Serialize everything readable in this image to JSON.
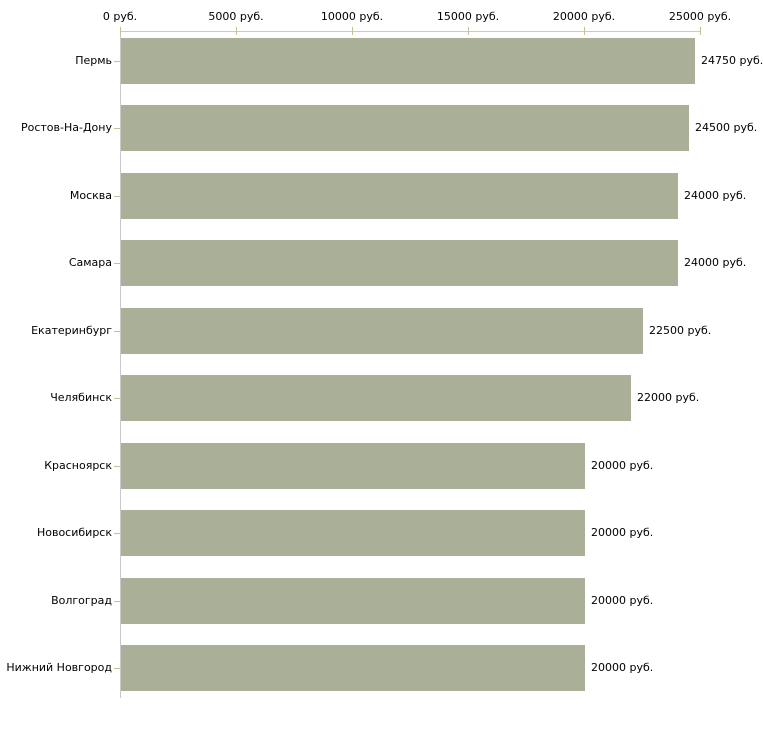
{
  "chart_data": {
    "type": "bar",
    "orientation": "horizontal",
    "categories": [
      "Пермь",
      "Ростов-На-Дону",
      "Москва",
      "Самара",
      "Екатеринбург",
      "Челябинск",
      "Красноярск",
      "Новосибирск",
      "Волгоград",
      "Нижний Новгород"
    ],
    "values": [
      24750,
      24500,
      24000,
      24000,
      22500,
      22000,
      20000,
      20000,
      20000,
      20000
    ],
    "value_labels": [
      "24750 руб.",
      "24500 руб.",
      "24000 руб.",
      "24000 руб.",
      "22500 руб.",
      "22000 руб.",
      "20000 руб.",
      "20000 руб.",
      "20000 руб.",
      "20000 руб."
    ],
    "x_axis": {
      "position": "top",
      "ticks": [
        0,
        5000,
        10000,
        15000,
        20000,
        25000
      ],
      "tick_labels": [
        "0 руб.",
        "5000 руб.",
        "10000 руб.",
        "15000 руб.",
        "20000 руб.",
        "25000 руб."
      ],
      "xlim": [
        0,
        25000
      ],
      "unit": "руб."
    },
    "legend": "none",
    "grid": "off",
    "colors": {
      "bar": "#aab098",
      "axis_line": "#c9c9c9",
      "tick_mark": "#c3c09a",
      "text": "#000000",
      "background": "#ffffff"
    }
  }
}
